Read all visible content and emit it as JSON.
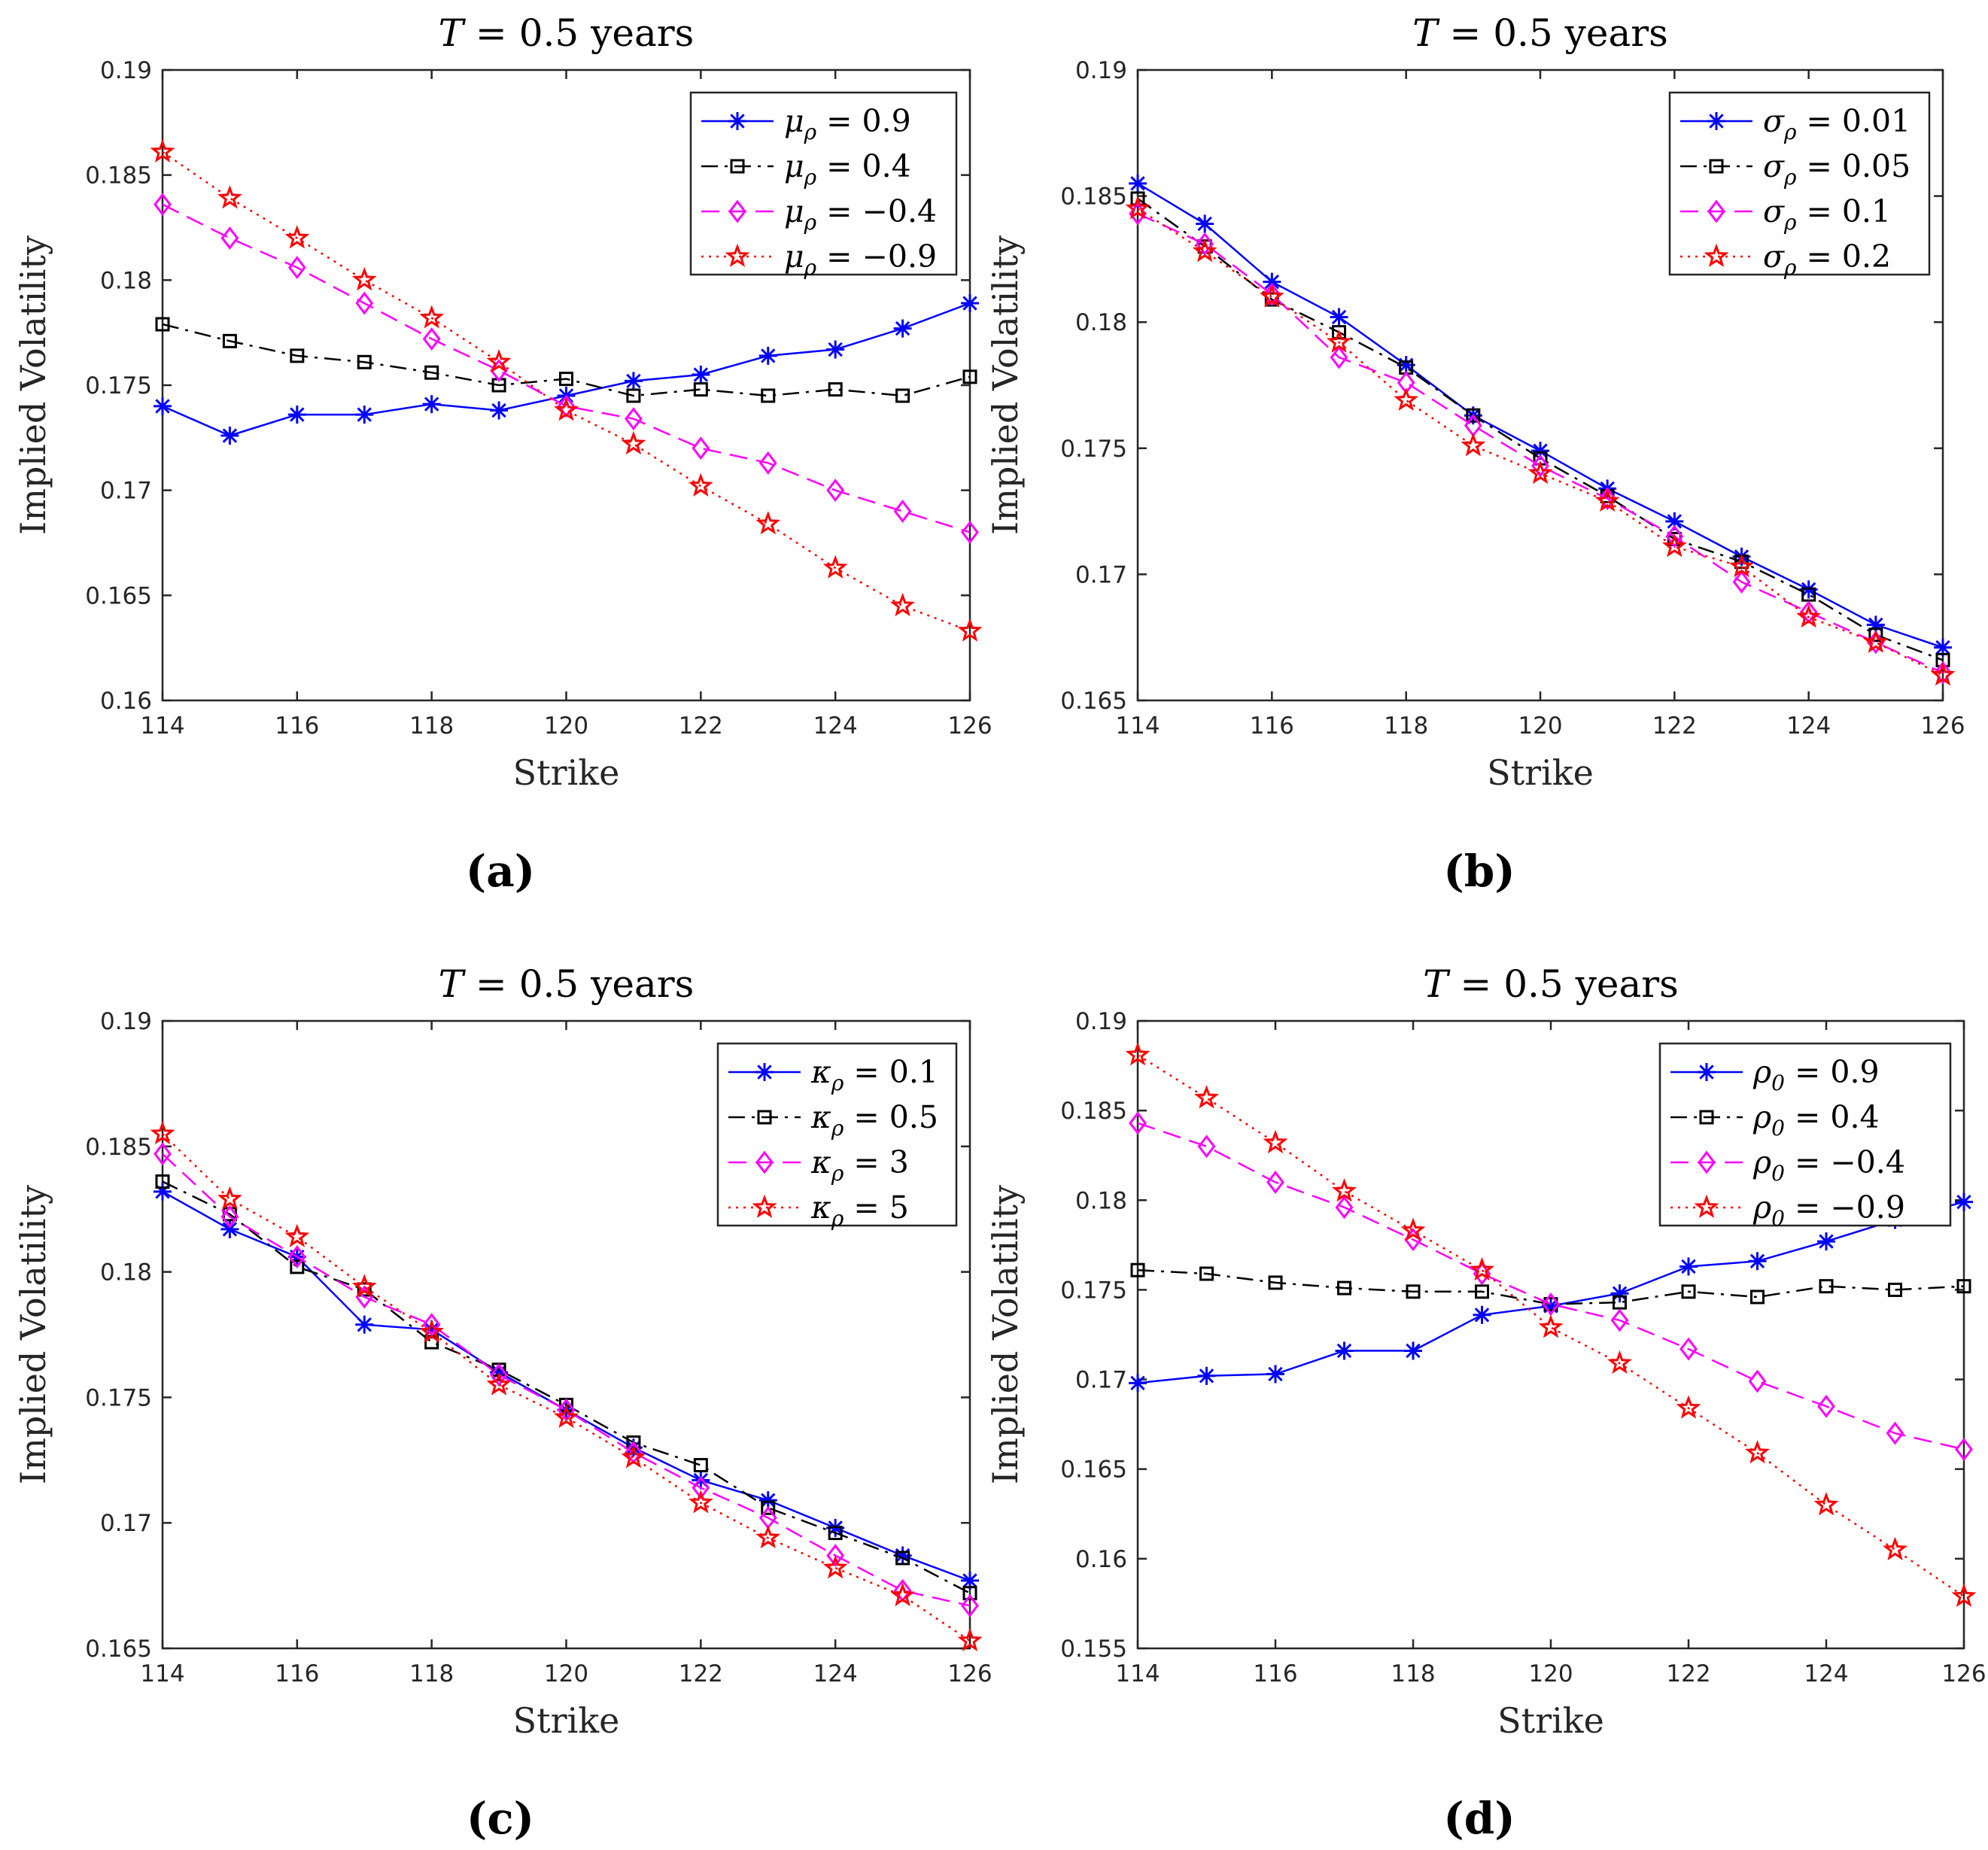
{
  "chart_data": [
    {
      "type": "line",
      "panel": "(a)",
      "title": "T = 0.5 years",
      "xlabel": "Strike",
      "ylabel": "Implied Volatility",
      "xlim": [
        114,
        126
      ],
      "ylim": [
        0.16,
        0.19
      ],
      "xticks": [
        "114",
        "116",
        "118",
        "120",
        "122",
        "124",
        "126"
      ],
      "yticks": [
        "0.16",
        "0.165",
        "0.17",
        "0.175",
        "0.18",
        "0.185",
        "0.19"
      ],
      "legend_position": "top-right",
      "x": [
        114,
        115,
        116,
        117,
        118,
        119,
        120,
        121,
        122,
        123,
        124,
        125,
        126
      ],
      "series": [
        {
          "name": "μρ = 0.9",
          "sym": "μ",
          "sub": "ρ",
          "val": "0.9",
          "color": "#0000ff",
          "dash": "solid",
          "marker": "asterisk",
          "values": [
            0.174,
            0.1726,
            0.1736,
            0.1736,
            0.1741,
            0.1738,
            0.1745,
            0.1752,
            0.1755,
            0.1764,
            0.1767,
            0.1777,
            0.1789
          ]
        },
        {
          "name": "μρ = 0.4",
          "sym": "μ",
          "sub": "ρ",
          "val": "0.4",
          "color": "#000000",
          "dash": "dashdot",
          "marker": "square",
          "values": [
            0.1779,
            0.1771,
            0.1764,
            0.1761,
            0.1756,
            0.175,
            0.1753,
            0.1745,
            0.1748,
            0.1745,
            0.1748,
            0.1745,
            0.1754
          ]
        },
        {
          "name": "μρ = −0.4",
          "sym": "μ",
          "sub": "ρ",
          "val": "−0.4",
          "color": "#ff00ff",
          "dash": "dashed",
          "marker": "diamond",
          "values": [
            0.1836,
            0.182,
            0.1806,
            0.1789,
            0.1772,
            0.1757,
            0.174,
            0.1734,
            0.172,
            0.1713,
            0.17,
            0.169,
            0.168
          ]
        },
        {
          "name": "μρ = −0.9",
          "sym": "μ",
          "sub": "ρ",
          "val": "−0.9",
          "color": "#ff0000",
          "dash": "dotted",
          "marker": "star",
          "values": [
            0.1861,
            0.1839,
            0.182,
            0.18,
            0.1782,
            0.1761,
            0.1738,
            0.1722,
            0.1702,
            0.1684,
            0.1663,
            0.1645,
            0.1633
          ]
        }
      ]
    },
    {
      "type": "line",
      "panel": "(b)",
      "title": "T = 0.5 years",
      "xlabel": "Strike",
      "ylabel": "Implied Volatility",
      "xlim": [
        114,
        126
      ],
      "ylim": [
        0.165,
        0.19
      ],
      "xticks": [
        "114",
        "116",
        "118",
        "120",
        "122",
        "124",
        "126"
      ],
      "yticks": [
        "0.165",
        "0.17",
        "0.175",
        "0.18",
        "0.185",
        "0.19"
      ],
      "legend_position": "top-right",
      "x": [
        114,
        115,
        116,
        117,
        118,
        119,
        120,
        121,
        122,
        123,
        124,
        125,
        126
      ],
      "series": [
        {
          "name": "σρ = 0.01",
          "sym": "σ",
          "sub": "ρ",
          "val": "0.01",
          "color": "#0000ff",
          "dash": "solid",
          "marker": "asterisk",
          "values": [
            0.1855,
            0.1839,
            0.1816,
            0.1802,
            0.1783,
            0.1763,
            0.1749,
            0.1734,
            0.1721,
            0.1707,
            0.1694,
            0.168,
            0.1671
          ]
        },
        {
          "name": "σρ = 0.05",
          "sym": "σ",
          "sub": "ρ",
          "val": "0.05",
          "color": "#000000",
          "dash": "dashdot",
          "marker": "square",
          "values": [
            0.1849,
            0.183,
            0.1809,
            0.1796,
            0.1782,
            0.1763,
            0.1746,
            0.1731,
            0.1714,
            0.1705,
            0.1692,
            0.1676,
            0.1666
          ]
        },
        {
          "name": "σρ = 0.1",
          "sym": "σ",
          "sub": "ρ",
          "val": "0.1",
          "color": "#ff00ff",
          "dash": "dashed",
          "marker": "diamond",
          "values": [
            0.1843,
            0.1831,
            0.1811,
            0.1786,
            0.1776,
            0.1759,
            0.1743,
            0.173,
            0.1715,
            0.1697,
            0.1685,
            0.1673,
            0.1661
          ]
        },
        {
          "name": "σρ = 0.2",
          "sym": "σ",
          "sub": "ρ",
          "val": "0.2",
          "color": "#ff0000",
          "dash": "dotted",
          "marker": "star",
          "values": [
            0.1845,
            0.1828,
            0.181,
            0.1792,
            0.1769,
            0.1751,
            0.174,
            0.1729,
            0.1711,
            0.1703,
            0.1683,
            0.1673,
            0.166
          ]
        }
      ]
    },
    {
      "type": "line",
      "panel": "(c)",
      "title": "T = 0.5 years",
      "xlabel": "Strike",
      "ylabel": "Implied Volatility",
      "xlim": [
        114,
        126
      ],
      "ylim": [
        0.165,
        0.19
      ],
      "xticks": [
        "114",
        "116",
        "118",
        "120",
        "122",
        "124",
        "126"
      ],
      "yticks": [
        "0.165",
        "0.17",
        "0.175",
        "0.18",
        "0.185",
        "0.19"
      ],
      "legend_position": "top-right",
      "x": [
        114,
        115,
        116,
        117,
        118,
        119,
        120,
        121,
        122,
        123,
        124,
        125,
        126
      ],
      "series": [
        {
          "name": "κρ = 0.1",
          "sym": "κ",
          "sub": "ρ",
          "val": "0.1",
          "color": "#0000ff",
          "dash": "solid",
          "marker": "asterisk",
          "values": [
            0.1832,
            0.1817,
            0.1806,
            0.1779,
            0.1777,
            0.176,
            0.1745,
            0.173,
            0.1717,
            0.1709,
            0.1698,
            0.1687,
            0.1677
          ]
        },
        {
          "name": "κρ = 0.5",
          "sym": "κ",
          "sub": "ρ",
          "val": "0.5",
          "color": "#000000",
          "dash": "dashdot",
          "marker": "square",
          "values": [
            0.1836,
            0.1823,
            0.1802,
            0.1793,
            0.1772,
            0.1761,
            0.1747,
            0.1732,
            0.1723,
            0.1706,
            0.1696,
            0.1686,
            0.1672
          ]
        },
        {
          "name": "κρ = 3",
          "sym": "κ",
          "sub": "ρ",
          "val": "3",
          "color": "#ff00ff",
          "dash": "dashed",
          "marker": "diamond",
          "values": [
            0.1847,
            0.1822,
            0.1806,
            0.179,
            0.1779,
            0.1759,
            0.1745,
            0.1728,
            0.1714,
            0.1702,
            0.1687,
            0.1673,
            0.1667
          ]
        },
        {
          "name": "κρ = 5",
          "sym": "κ",
          "sub": "ρ",
          "val": "5",
          "color": "#ff0000",
          "dash": "dotted",
          "marker": "star",
          "values": [
            0.1855,
            0.1829,
            0.1814,
            0.1794,
            0.1776,
            0.1755,
            0.1742,
            0.1726,
            0.1708,
            0.1694,
            0.1682,
            0.1671,
            0.1653
          ]
        }
      ]
    },
    {
      "type": "line",
      "panel": "(d)",
      "title": "T = 0.5 years",
      "xlabel": "Strike",
      "ylabel": "Implied Volatility",
      "xlim": [
        114,
        126
      ],
      "ylim": [
        0.155,
        0.19
      ],
      "xticks": [
        "114",
        "116",
        "118",
        "120",
        "122",
        "124",
        "126"
      ],
      "yticks": [
        "0.155",
        "0.16",
        "0.165",
        "0.17",
        "0.175",
        "0.18",
        "0.185",
        "0.19"
      ],
      "legend_position": "top-right",
      "x": [
        114,
        115,
        116,
        117,
        118,
        119,
        120,
        121,
        122,
        123,
        124,
        125,
        126
      ],
      "series": [
        {
          "name": "ρ0 = 0.9",
          "sym": "ρ",
          "sub": "0",
          "val": "0.9",
          "color": "#0000ff",
          "dash": "solid",
          "marker": "asterisk",
          "values": [
            0.1698,
            0.1702,
            0.1703,
            0.1716,
            0.1716,
            0.1736,
            0.1741,
            0.1748,
            0.1763,
            0.1766,
            0.1777,
            0.1789,
            0.1799
          ]
        },
        {
          "name": "ρ0 = 0.4",
          "sym": "ρ",
          "sub": "0",
          "val": "0.4",
          "color": "#000000",
          "dash": "dashdot",
          "marker": "square",
          "values": [
            0.1761,
            0.1759,
            0.1754,
            0.1751,
            0.1749,
            0.1749,
            0.1742,
            0.1743,
            0.1749,
            0.1746,
            0.1752,
            0.175,
            0.1752
          ]
        },
        {
          "name": "ρ0 = −0.4",
          "sym": "ρ",
          "sub": "0",
          "val": "−0.4",
          "color": "#ff00ff",
          "dash": "dashed",
          "marker": "diamond",
          "values": [
            0.1843,
            0.183,
            0.181,
            0.1796,
            0.1778,
            0.1759,
            0.1742,
            0.1733,
            0.1717,
            0.1699,
            0.1685,
            0.167,
            0.1661
          ]
        },
        {
          "name": "ρ0 = −0.9",
          "sym": "ρ",
          "sub": "0",
          "val": "−0.9",
          "color": "#ff0000",
          "dash": "dotted",
          "marker": "star",
          "values": [
            0.1881,
            0.1857,
            0.1832,
            0.1805,
            0.1783,
            0.1761,
            0.1729,
            0.1709,
            0.1684,
            0.1659,
            0.163,
            0.1605,
            0.1579
          ]
        }
      ]
    }
  ]
}
